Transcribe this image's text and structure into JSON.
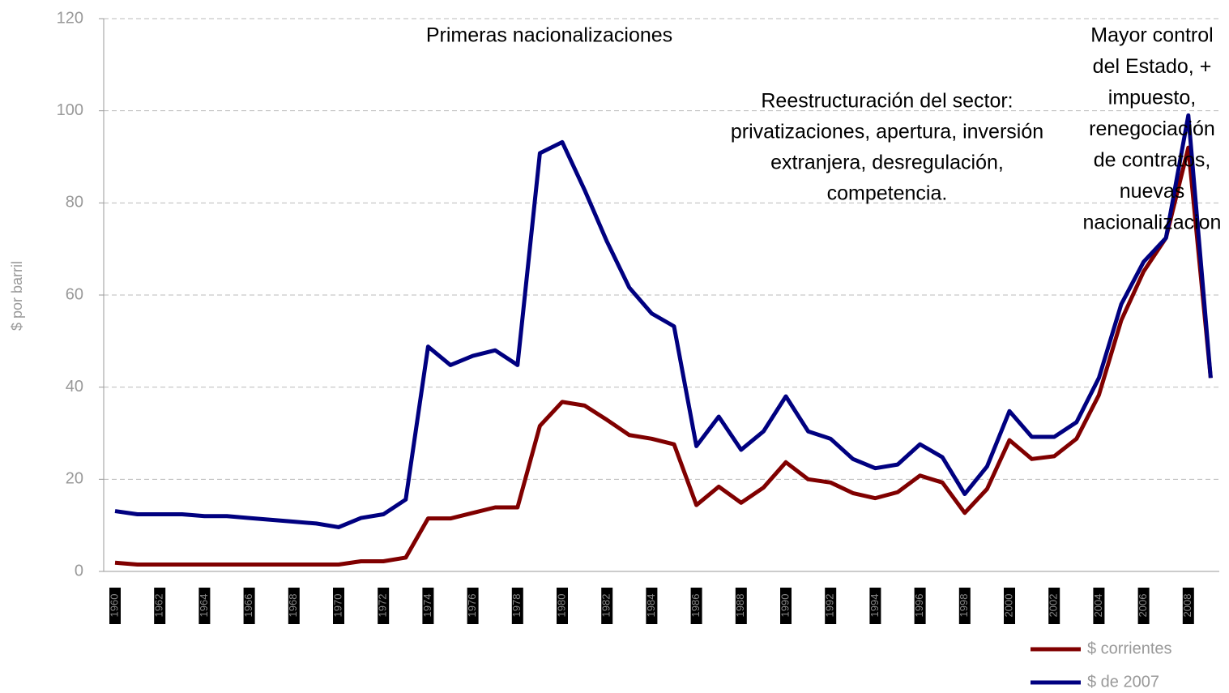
{
  "chart_data": {
    "type": "line",
    "y_label": "$ por barril",
    "categories": [
      "1960",
      null,
      "1962",
      null,
      "1964",
      null,
      "1966",
      null,
      "1968",
      null,
      "1970",
      null,
      "1972",
      null,
      "1974",
      null,
      "1976",
      null,
      "1978",
      null,
      "1980",
      null,
      "1982",
      null,
      "1984",
      null,
      "1986",
      null,
      "1988",
      null,
      "1990",
      null,
      "1992",
      null,
      "1994",
      null,
      "1996",
      null,
      "1998",
      null,
      "2000",
      null,
      "2002",
      null,
      "2004",
      null,
      "2006",
      null,
      "2008",
      null
    ],
    "series": [
      {
        "name": "$ corrientes",
        "color": "#800000",
        "values": [
          1.9,
          1.5,
          1.5,
          1.5,
          1.5,
          1.5,
          1.5,
          1.5,
          1.5,
          1.5,
          1.5,
          2.2,
          2.2,
          3,
          11.5,
          11.5,
          12.7,
          13.9,
          13.9,
          31.6,
          36.8,
          36,
          32.9,
          29.6,
          28.8,
          27.6,
          14.4,
          18.4,
          14.9,
          18.2,
          23.7,
          20,
          19.3,
          17,
          15.9,
          17.2,
          20.8,
          19.3,
          12.7,
          17.9,
          28.5,
          24.4,
          25,
          28.8,
          38.3,
          54.5,
          65.1,
          72.4,
          92,
          42
        ]
      },
      {
        "name": "$ de 2007",
        "color": "#000080",
        "values": [
          13.1,
          12.4,
          12.4,
          12.4,
          12,
          12,
          11.6,
          11.2,
          10.8,
          10.4,
          9.6,
          11.6,
          12.4,
          15.6,
          48.8,
          44.8,
          46.8,
          48,
          44.8,
          90.8,
          93.2,
          82.8,
          71.6,
          61.6,
          56,
          53.2,
          27.2,
          33.6,
          26.4,
          30.4,
          38,
          30.4,
          28.8,
          24.4,
          22.4,
          23.2,
          27.6,
          24.8,
          16.8,
          22.8,
          34.8,
          29.2,
          29.2,
          32.4,
          42,
          58,
          67.2,
          72.4,
          99,
          42
        ]
      }
    ],
    "ylim": [
      0,
      120
    ],
    "yticks": [
      0,
      20,
      40,
      60,
      80,
      100,
      120
    ],
    "grid": true,
    "annotations": [
      {
        "lines": [
          "Primeras nacionalizaciones"
        ]
      },
      {
        "lines": [
          "Reestructuración del sector:",
          "privatizaciones, apertura, inversión",
          "extranjera, desregulación,",
          "competencia."
        ]
      },
      {
        "lines": [
          "Mayor control",
          "del Estado, +",
          "impuesto,",
          "renegociación",
          "de contratos,",
          "nuevas",
          "nacionalizacion"
        ]
      }
    ],
    "legend": "bottom-right"
  }
}
